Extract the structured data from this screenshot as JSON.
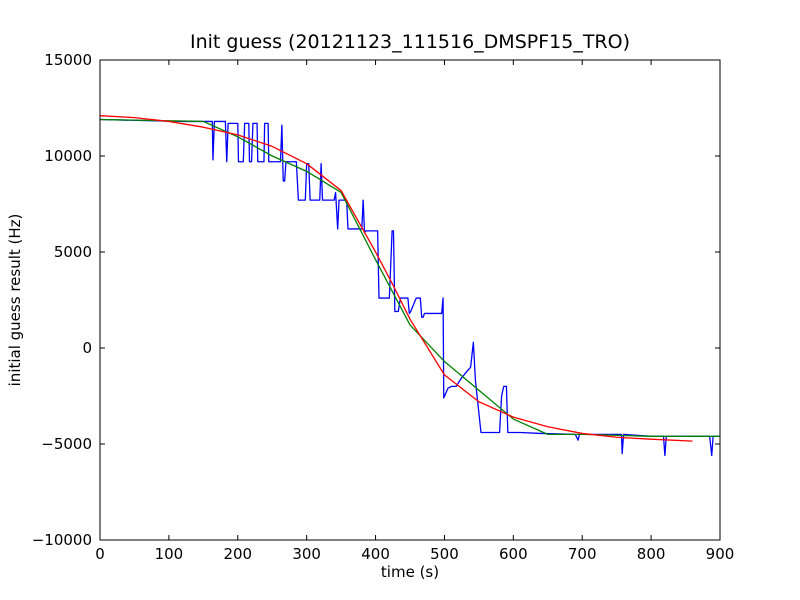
{
  "chart_data": {
    "type": "line",
    "title": "Init guess (20121123_111516_DMSPF15_TRO)",
    "xlabel": "time (s)",
    "ylabel": "initial guess result (Hz)",
    "xlim": [
      0,
      900
    ],
    "ylim": [
      -10000,
      15000
    ],
    "x_ticks": [
      0,
      100,
      200,
      300,
      400,
      500,
      600,
      700,
      800,
      900
    ],
    "y_ticks": [
      -10000,
      -5000,
      0,
      5000,
      10000,
      15000
    ],
    "x_tick_labels": [
      "0",
      "100",
      "200",
      "300",
      "400",
      "500",
      "600",
      "700",
      "800",
      "900"
    ],
    "y_tick_labels": [
      "−10000",
      "−5000",
      "0",
      "5000",
      "10000",
      "15000"
    ],
    "grid": false,
    "legend": "none",
    "series": [
      {
        "color": "#0000ff",
        "style": "step",
        "points": [
          [
            0,
            11900
          ],
          [
            60,
            11850
          ],
          [
            120,
            11800
          ],
          [
            163,
            11800
          ],
          [
            164,
            9800
          ],
          [
            166,
            11800
          ],
          [
            182,
            11800
          ],
          [
            184,
            9700
          ],
          [
            186,
            11700
          ],
          [
            200,
            11700
          ],
          [
            201,
            9700
          ],
          [
            208,
            9700
          ],
          [
            210,
            11700
          ],
          [
            216,
            11700
          ],
          [
            217,
            9700
          ],
          [
            220,
            9700
          ],
          [
            222,
            11700
          ],
          [
            228,
            11700
          ],
          [
            229,
            9700
          ],
          [
            238,
            9700
          ],
          [
            239,
            11700
          ],
          [
            244,
            11700
          ],
          [
            245,
            9700
          ],
          [
            262,
            9700
          ],
          [
            264,
            11600
          ],
          [
            266,
            8700
          ],
          [
            268,
            8700
          ],
          [
            270,
            9700
          ],
          [
            285,
            9700
          ],
          [
            288,
            7700
          ],
          [
            298,
            7700
          ],
          [
            300,
            9600
          ],
          [
            303,
            9600
          ],
          [
            305,
            7700
          ],
          [
            319,
            7700
          ],
          [
            321,
            9600
          ],
          [
            323,
            7700
          ],
          [
            340,
            7700
          ],
          [
            342,
            8100
          ],
          [
            345,
            6200
          ],
          [
            347,
            7700
          ],
          [
            358,
            7700
          ],
          [
            360,
            6200
          ],
          [
            378,
            6200
          ],
          [
            380,
            6200
          ],
          [
            382,
            7700
          ],
          [
            384,
            6000
          ],
          [
            386,
            6100
          ],
          [
            403,
            6100
          ],
          [
            405,
            2600
          ],
          [
            420,
            2600
          ],
          [
            422,
            4300
          ],
          [
            424,
            6100
          ],
          [
            426,
            6100
          ],
          [
            428,
            1900
          ],
          [
            433,
            1900
          ],
          [
            436,
            2600
          ],
          [
            447,
            2600
          ],
          [
            449,
            1800
          ],
          [
            451,
            1900
          ],
          [
            459,
            2600
          ],
          [
            465,
            2600
          ],
          [
            467,
            1600
          ],
          [
            469,
            1600
          ],
          [
            471,
            1800
          ],
          [
            496,
            1800
          ],
          [
            498,
            2600
          ],
          [
            499,
            -2600
          ],
          [
            505,
            -2100
          ],
          [
            510,
            -2000
          ],
          [
            517,
            -2000
          ],
          [
            524,
            -1600
          ],
          [
            533,
            -1200
          ],
          [
            538,
            -1000
          ],
          [
            542,
            300
          ],
          [
            545,
            -1700
          ],
          [
            553,
            -4400
          ],
          [
            580,
            -4400
          ],
          [
            583,
            -2500
          ],
          [
            586,
            -2000
          ],
          [
            590,
            -2000
          ],
          [
            592,
            -4400
          ],
          [
            608,
            -4400
          ],
          [
            610,
            -4400
          ],
          [
            640,
            -4450
          ],
          [
            690,
            -4500
          ],
          [
            694,
            -4800
          ],
          [
            696,
            -4500
          ],
          [
            740,
            -4500
          ],
          [
            757,
            -4500
          ],
          [
            758,
            -5500
          ],
          [
            760,
            -4500
          ],
          [
            800,
            -4600
          ],
          [
            818,
            -4600
          ],
          [
            820,
            -5600
          ],
          [
            822,
            -4600
          ],
          [
            860,
            -4600
          ],
          [
            885,
            -4600
          ],
          [
            888,
            -5600
          ],
          [
            890,
            -4600
          ],
          [
            900,
            -4600
          ]
        ]
      },
      {
        "color": "#008000",
        "style": "line",
        "points": [
          [
            0,
            11900
          ],
          [
            150,
            11800
          ],
          [
            200,
            11000
          ],
          [
            250,
            10000
          ],
          [
            300,
            9200
          ],
          [
            350,
            8100
          ],
          [
            400,
            4600
          ],
          [
            450,
            1200
          ],
          [
            500,
            -700
          ],
          [
            550,
            -2200
          ],
          [
            600,
            -3700
          ],
          [
            650,
            -4500
          ],
          [
            700,
            -4500
          ],
          [
            800,
            -4600
          ],
          [
            900,
            -4600
          ]
        ]
      },
      {
        "color": "#ff0000",
        "style": "line",
        "points": [
          [
            0,
            12100
          ],
          [
            50,
            12000
          ],
          [
            100,
            11800
          ],
          [
            150,
            11500
          ],
          [
            200,
            11100
          ],
          [
            250,
            10500
          ],
          [
            300,
            9600
          ],
          [
            350,
            8200
          ],
          [
            400,
            5000
          ],
          [
            425,
            3300
          ],
          [
            450,
            1500
          ],
          [
            500,
            -1400
          ],
          [
            550,
            -2800
          ],
          [
            600,
            -3600
          ],
          [
            650,
            -4100
          ],
          [
            700,
            -4450
          ],
          [
            750,
            -4650
          ],
          [
            800,
            -4750
          ],
          [
            860,
            -4850
          ]
        ]
      }
    ]
  }
}
